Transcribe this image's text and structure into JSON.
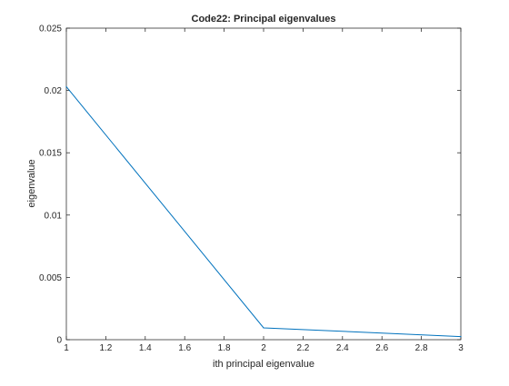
{
  "chart_data": {
    "type": "line",
    "title": "Code22: Principal eigenvalues",
    "xlabel": "ith principal eigenvalue",
    "ylabel": "eigenvalue",
    "xlim": [
      1,
      3
    ],
    "ylim": [
      0,
      0.025
    ],
    "xticks": [
      1,
      1.2,
      1.4,
      1.6,
      1.8,
      2,
      2.2,
      2.4,
      2.6,
      2.8,
      3
    ],
    "xtick_labels": [
      "1",
      "1.2",
      "1.4",
      "1.6",
      "1.8",
      "2",
      "2.2",
      "2.4",
      "2.6",
      "2.8",
      "3"
    ],
    "yticks": [
      0,
      0.005,
      0.01,
      0.015,
      0.02,
      0.025
    ],
    "ytick_labels": [
      "0",
      "0.005",
      "0.01",
      "0.015",
      "0.02",
      "0.025"
    ],
    "grid": false,
    "series": [
      {
        "x": [
          1,
          2,
          3
        ],
        "y": [
          0.0203,
          0.00095,
          0.00025
        ],
        "color": "#0072bd"
      }
    ]
  }
}
